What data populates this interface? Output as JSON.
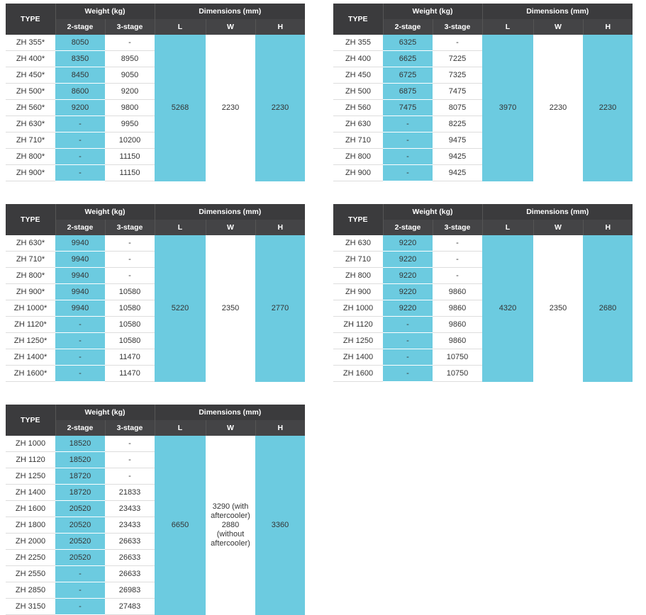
{
  "tables": [
    {
      "header": {
        "type": "TYPE",
        "weight": "Weight (kg)",
        "dimensions": "Dimensions (mm)",
        "two_stage": "2-stage",
        "three_stage": "3-stage",
        "l": "L",
        "w": "W",
        "h": "H"
      },
      "rows": [
        [
          "ZH 355*",
          8050,
          "-"
        ],
        [
          "ZH 400*",
          8350,
          8950
        ],
        [
          "ZH 450*",
          8450,
          9050
        ],
        [
          "ZH 500*",
          8600,
          9200
        ],
        [
          "ZH 560*",
          9200,
          9800
        ],
        [
          "ZH 630*",
          "-",
          9950
        ],
        [
          "ZH 710*",
          "-",
          10200
        ],
        [
          "ZH 800*",
          "-",
          11150
        ],
        [
          "ZH 900*",
          "-",
          11150
        ]
      ],
      "dims": {
        "l": 5268,
        "w": 2230,
        "h": 2230
      }
    },
    {
      "header": {
        "type": "TYPE",
        "weight": "Weight (kg)",
        "dimensions": "Dimensions (mm)",
        "two_stage": "2-stage",
        "three_stage": "3-stage",
        "l": "L",
        "w": "W",
        "h": "H"
      },
      "rows": [
        [
          "ZH 355",
          6325,
          "-"
        ],
        [
          "ZH 400",
          6625,
          7225
        ],
        [
          "ZH 450",
          6725,
          7325
        ],
        [
          "ZH 500",
          6875,
          7475
        ],
        [
          "ZH 560",
          7475,
          8075
        ],
        [
          "ZH 630",
          "-",
          8225
        ],
        [
          "ZH 710",
          "-",
          9475
        ],
        [
          "ZH 800",
          "-",
          9425
        ],
        [
          "ZH 900",
          "-",
          9425
        ]
      ],
      "dims": {
        "l": 3970,
        "w": 2230,
        "h": 2230
      }
    },
    {
      "header": {
        "type": "TYPE",
        "weight": "Weight (kg)",
        "dimensions": "Dimensions (mm)",
        "two_stage": "2-stage",
        "three_stage": "3-stage",
        "l": "L",
        "w": "W",
        "h": "H"
      },
      "rows": [
        [
          "ZH 630*",
          9940,
          "-"
        ],
        [
          "ZH 710*",
          9940,
          "-"
        ],
        [
          "ZH 800*",
          9940,
          "-"
        ],
        [
          "ZH 900*",
          9940,
          10580
        ],
        [
          "ZH 1000*",
          9940,
          10580
        ],
        [
          "ZH 1120*",
          "-",
          10580
        ],
        [
          "ZH 1250*",
          "-",
          10580
        ],
        [
          "ZH 1400*",
          "-",
          11470
        ],
        [
          "ZH 1600*",
          "-",
          11470
        ]
      ],
      "dims": {
        "l": 5220,
        "w": 2350,
        "h": 2770
      }
    },
    {
      "header": {
        "type": "TYPE",
        "weight": "Weight (kg)",
        "dimensions": "Dimensions (mm)",
        "two_stage": "2-stage",
        "three_stage": "3-stage",
        "l": "L",
        "w": "W",
        "h": "H"
      },
      "rows": [
        [
          "ZH 630",
          9220,
          "-"
        ],
        [
          "ZH 710",
          9220,
          "-"
        ],
        [
          "ZH 800",
          9220,
          "-"
        ],
        [
          "ZH 900",
          9220,
          9860
        ],
        [
          "ZH 1000",
          9220,
          9860
        ],
        [
          "ZH 1120",
          "-",
          9860
        ],
        [
          "ZH 1250",
          "-",
          9860
        ],
        [
          "ZH 1400",
          "-",
          10750
        ],
        [
          "ZH 1600",
          "-",
          10750
        ]
      ],
      "dims": {
        "l": 4320,
        "w": 2350,
        "h": 2680
      }
    },
    {
      "header": {
        "type": "TYPE",
        "weight": "Weight (kg)",
        "dimensions": "Dimensions (mm)",
        "two_stage": "2-stage",
        "three_stage": "3-stage",
        "l": "L",
        "w": "W",
        "h": "H"
      },
      "rows": [
        [
          "ZH 1000",
          18520,
          "-"
        ],
        [
          "ZH 1120",
          18520,
          "-"
        ],
        [
          "ZH 1250",
          18720,
          "-"
        ],
        [
          "ZH 1400",
          18720,
          21833
        ],
        [
          "ZH 1600",
          20520,
          23433
        ],
        [
          "ZH 1800",
          20520,
          23433
        ],
        [
          "ZH 2000",
          20520,
          26633
        ],
        [
          "ZH 2250",
          20520,
          26633
        ],
        [
          "ZH 2550",
          "-",
          26633
        ],
        [
          "ZH 2850",
          "-",
          26983
        ],
        [
          "ZH 3150",
          "-",
          27483
        ]
      ],
      "dims": {
        "l": 6650,
        "w": "3290 (with aftercooler) 2880 (without aftercooler)",
        "h": 3360
      }
    }
  ]
}
